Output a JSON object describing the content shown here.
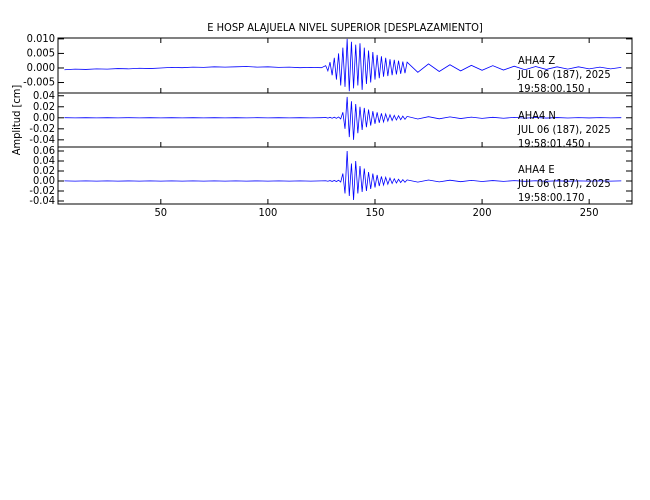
{
  "chart_data": {
    "type": "line",
    "title": "E HOSP ALAJUELA NIVEL SUPERIOR [DESPLAZAMIENTO]",
    "ylabel": "Amplitud [cm]",
    "x": [
      5,
      10,
      15,
      20,
      25,
      30,
      35,
      40,
      45,
      50,
      55,
      60,
      65,
      70,
      75,
      80,
      85,
      90,
      95,
      100,
      105,
      110,
      115,
      120,
      125,
      127,
      128,
      129,
      130,
      131,
      132,
      133,
      134,
      135,
      136,
      137,
      138,
      139,
      140,
      141,
      142,
      143,
      144,
      145,
      146,
      147,
      148,
      149,
      150,
      151,
      152,
      153,
      154,
      155,
      156,
      157,
      158,
      159,
      160,
      161,
      162,
      163,
      164,
      165,
      170,
      175,
      180,
      185,
      190,
      195,
      200,
      205,
      210,
      215,
      220,
      225,
      230,
      235,
      240,
      245,
      250,
      255,
      260,
      265
    ],
    "xlim": [
      2,
      270
    ],
    "xticks": [
      50,
      100,
      150,
      200,
      250
    ],
    "panels": [
      {
        "ylim": [
          -0.0086,
          0.0103
        ],
        "yticks": [
          {
            "value": 0.01,
            "label": "0.010"
          },
          0.005,
          {
            "value": 0,
            "label": "0.000"
          },
          -0.005
        ],
        "annotations": [
          "AHA4   Z",
          "JUL 06 (187), 2025",
          "19:58:00.150"
        ],
        "series": [
          {
            "color": "#0000ff",
            "values": [
              -0.0006,
              -0.0004,
              -0.0005,
              -0.0003,
              -0.0004,
              -0.0002,
              -0.0003,
              -0.0001,
              -0.0002,
              0.0,
              0.0002,
              0.0001,
              0.0003,
              0.0002,
              0.0004,
              0.0003,
              0.0004,
              0.0005,
              0.0003,
              0.0004,
              0.0002,
              0.0003,
              0.0001,
              0.0002,
              0.0001,
              0.0008,
              -0.001,
              0.002,
              -0.0025,
              0.0035,
              -0.004,
              0.005,
              -0.006,
              0.007,
              -0.0065,
              0.01,
              -0.008,
              0.009,
              -0.007,
              0.008,
              -0.006,
              0.0085,
              -0.0075,
              0.007,
              -0.0055,
              0.006,
              -0.005,
              0.0055,
              -0.004,
              0.0045,
              -0.0035,
              0.004,
              -0.003,
              0.0035,
              -0.0028,
              0.003,
              -0.0025,
              0.0028,
              -0.0022,
              0.0025,
              -0.002,
              0.0022,
              -0.0018,
              0.002,
              -0.0015,
              0.0014,
              -0.0012,
              0.0011,
              -0.001,
              0.0009,
              -0.0008,
              0.0008,
              -0.0007,
              0.0006,
              -0.0006,
              0.0005,
              -0.0005,
              0.0004,
              -0.0004,
              0.0004,
              -0.0003,
              0.0003,
              -0.0003,
              0.0002
            ]
          }
        ]
      },
      {
        "ylim": [
          -0.053,
          0.045
        ],
        "yticks": [
          0.04,
          0.02,
          {
            "value": 0,
            "label": "0.00"
          },
          -0.02,
          -0.04
        ],
        "annotations": [
          "AHA4   N",
          "JUL 06 (187), 2025",
          "19:58:01.450"
        ],
        "series": [
          {
            "color": "#0000ff",
            "values": [
              0.0002,
              -0.0002,
              0.0002,
              -0.0002,
              0.0002,
              -0.0002,
              0.0002,
              -0.0002,
              0.0002,
              -0.0002,
              0.0002,
              -0.0002,
              0.0002,
              -0.0002,
              0.0002,
              -0.0002,
              0.0002,
              -0.0002,
              0.0002,
              -0.0002,
              0.0002,
              -0.0002,
              0.0002,
              -0.0002,
              0.0002,
              0.0005,
              -0.0005,
              0.0008,
              -0.0008,
              0.001,
              -0.001,
              0.0015,
              -0.002,
              0.01,
              -0.02,
              0.038,
              -0.035,
              0.03,
              -0.04,
              0.025,
              -0.028,
              0.02,
              -0.022,
              0.018,
              -0.017,
              0.015,
              -0.014,
              0.012,
              -0.011,
              0.01,
              -0.009,
              0.008,
              -0.0075,
              0.007,
              -0.006,
              0.0055,
              -0.005,
              0.0045,
              -0.004,
              0.0038,
              -0.0035,
              0.003,
              -0.0028,
              0.0025,
              -0.0022,
              0.002,
              -0.0018,
              0.0016,
              -0.0014,
              0.0012,
              -0.001,
              0.0009,
              -0.0008,
              0.0007,
              -0.0006,
              0.0005,
              -0.0005,
              0.0004,
              -0.0004,
              0.0003,
              -0.0003,
              0.0003,
              -0.0002,
              0.0002
            ]
          }
        ]
      },
      {
        "ylim": [
          -0.046,
          0.068
        ],
        "yticks": [
          0.06,
          0.04,
          0.02,
          {
            "value": 0,
            "label": "0.00"
          },
          -0.02,
          -0.04
        ],
        "annotations": [
          "AHA4   E",
          "JUL 06 (187), 2025",
          "19:58:00.170"
        ],
        "series": [
          {
            "color": "#0000ff",
            "values": [
              0.0002,
              -0.0002,
              0.0002,
              -0.0002,
              0.0002,
              -0.0002,
              0.0002,
              -0.0002,
              0.0002,
              -0.0002,
              0.0002,
              -0.0002,
              0.0002,
              -0.0002,
              0.0002,
              -0.0002,
              0.0002,
              -0.0002,
              0.0002,
              -0.0002,
              0.0002,
              -0.0002,
              0.0002,
              -0.0002,
              0.0002,
              0.0005,
              -0.0005,
              0.0008,
              -0.0008,
              0.001,
              -0.001,
              0.0015,
              -0.002,
              0.015,
              -0.025,
              0.06,
              -0.03,
              0.035,
              -0.038,
              0.04,
              -0.025,
              0.03,
              -0.022,
              0.025,
              -0.02,
              0.018,
              -0.016,
              0.015,
              -0.013,
              0.012,
              -0.01,
              0.009,
              -0.008,
              0.0075,
              -0.0065,
              0.006,
              -0.005,
              0.0045,
              -0.004,
              0.0035,
              -0.003,
              0.0028,
              -0.0025,
              0.0022,
              -0.0022,
              0.002,
              -0.0018,
              0.0016,
              -0.0014,
              0.0012,
              -0.001,
              0.0009,
              -0.0008,
              0.0007,
              -0.0006,
              0.0005,
              -0.0005,
              0.0004,
              -0.0004,
              0.0003,
              -0.0003,
              0.0003,
              -0.0002,
              0.0002
            ]
          }
        ]
      }
    ]
  }
}
